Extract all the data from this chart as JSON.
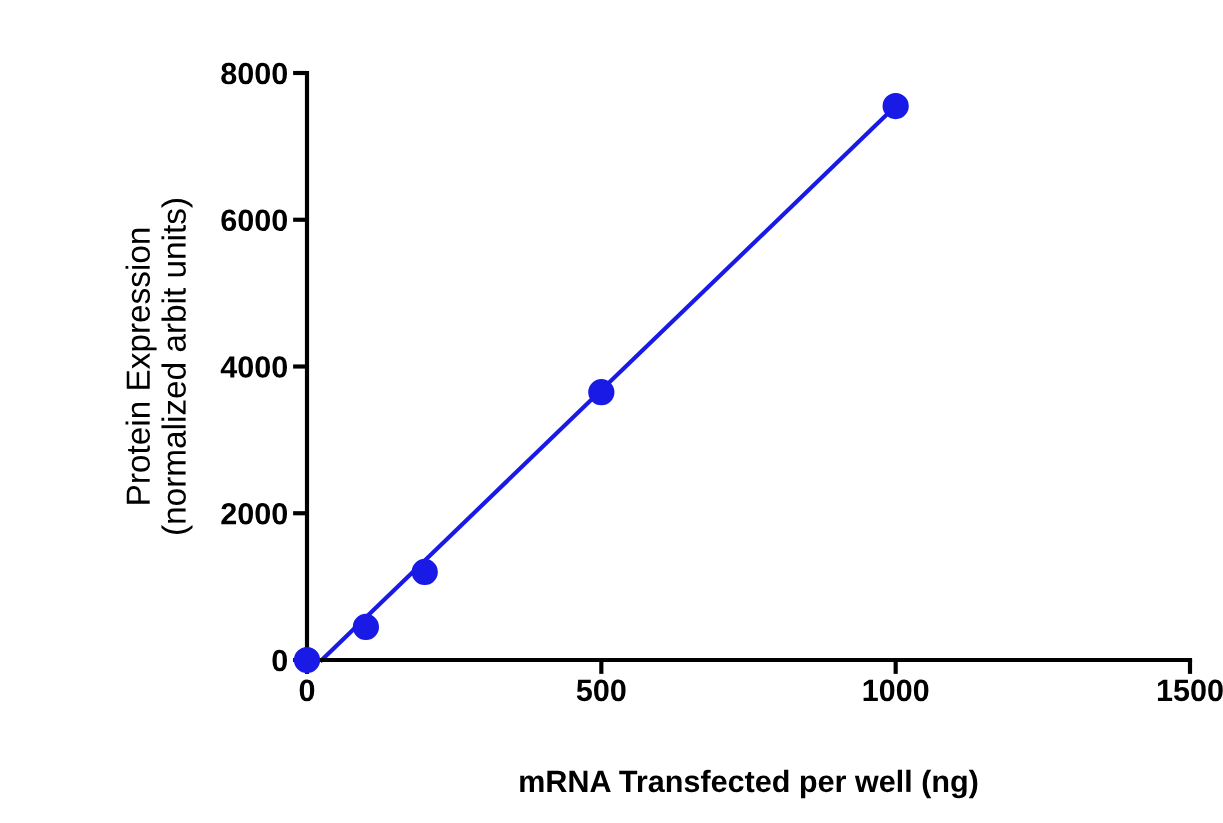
{
  "chart_data": {
    "type": "scatter",
    "xlabel": "mRNA Transfected per well (ng)",
    "ylabel": "Protein Expression\n(normalized arbit units)",
    "x": [
      0,
      100,
      200,
      500,
      1000
    ],
    "series": [
      {
        "color": "#1a1ae6",
        "values": [
          0,
          450,
          1200,
          3650,
          7550
        ],
        "marker": "circle"
      },
      {
        "type": "line",
        "color": "#1a1ae6",
        "x": [
          25,
          1000
        ],
        "values": [
          0,
          7550
        ],
        "marker": "none",
        "line_style": "solid"
      }
    ],
    "xlim": [
      0,
      1500
    ],
    "xticks": [
      0,
      500,
      1000,
      1500
    ],
    "ylim": [
      0,
      8000
    ],
    "yticks": [
      0,
      2000,
      4000,
      6000,
      8000
    ],
    "grid": false,
    "legend": false
  }
}
